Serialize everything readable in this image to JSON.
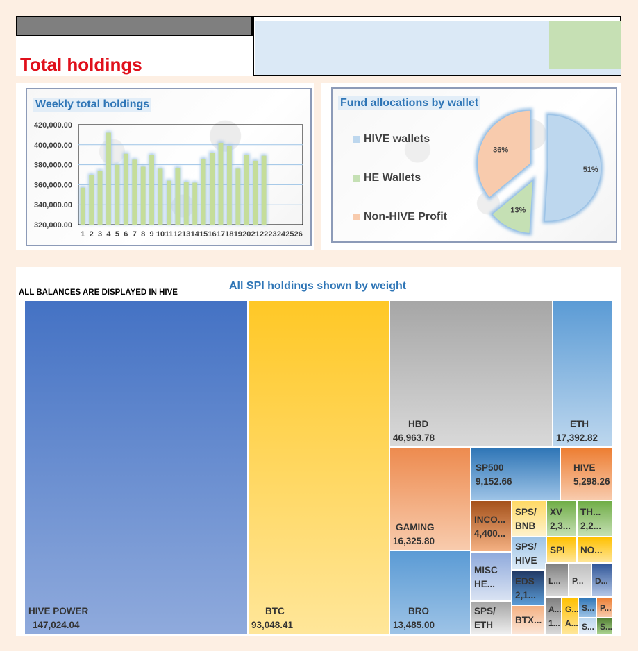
{
  "header": {
    "title": "Total holdings"
  },
  "weekly_chart": {
    "title": "Weekly total holdings"
  },
  "pie_chart": {
    "title": "Fund allocations by wallet"
  },
  "treemap": {
    "title": "All SPI holdings shown by weight",
    "note": "ALL BALANCES ARE DISPLAYED IN HIVE"
  },
  "chart_data": [
    {
      "type": "bar",
      "title": "Weekly total holdings",
      "categories": [
        "1",
        "2",
        "3",
        "4",
        "5",
        "6",
        "7",
        "8",
        "9",
        "10",
        "11",
        "12",
        "13",
        "14",
        "15",
        "16",
        "17",
        "18",
        "19",
        "20",
        "21",
        "22",
        "23",
        "24",
        "25",
        "26"
      ],
      "values": [
        357000,
        370000,
        374000,
        412000,
        380000,
        391000,
        385000,
        378000,
        390000,
        376000,
        364000,
        377000,
        363000,
        362000,
        386000,
        392000,
        402000,
        399000,
        376000,
        390000,
        384000,
        389000,
        null,
        null,
        null,
        null
      ],
      "ylim": [
        320000,
        420000
      ],
      "yticks": [
        "320,000.00",
        "340,000.00",
        "360,000.00",
        "380,000.00",
        "400,000.00",
        "420,000.00"
      ],
      "grid": true,
      "colors": {
        "bar": "#c5dd9a",
        "glow": "#9dc3e6"
      }
    },
    {
      "type": "pie",
      "title": "Fund allocations by wallet",
      "legend_position": "left",
      "slices": [
        {
          "name": "HIVE wallets",
          "value": 51,
          "label": "51%",
          "color": "#bdd7ee"
        },
        {
          "name": "HE Wallets",
          "value": 13,
          "label": "13%",
          "color": "#c5e0b4"
        },
        {
          "name": "Non-HIVE Profit",
          "value": 36,
          "label": "36%",
          "color": "#f8cbad"
        }
      ]
    },
    {
      "type": "treemap",
      "title": "All SPI holdings shown by weight",
      "items": [
        {
          "name": "HIVE POWER",
          "label": "HIVE POWER",
          "value_label": "147,024.04",
          "value": 147024.04,
          "color": [
            "#4472c4",
            "#8faadc"
          ]
        },
        {
          "name": "BTC",
          "label": "BTC",
          "value_label": "93,048.41",
          "value": 93048.41,
          "color": [
            "#ffc826",
            "#ffe699"
          ]
        },
        {
          "name": "HBD",
          "label": "HBD",
          "value_label": "46,963.78",
          "value": 46963.78,
          "color": [
            "#a6a6a6",
            "#d9d9d9"
          ]
        },
        {
          "name": "ETH",
          "label": "ETH",
          "value_label": "17,392.82",
          "value": 17392.82,
          "color": [
            "#5b9bd5",
            "#bdd7ee"
          ]
        },
        {
          "name": "GAMING",
          "label": "GAMING",
          "value_label": "16,325.80",
          "value": 16325.8,
          "color": [
            "#ed8b4f",
            "#f8cbad"
          ]
        },
        {
          "name": "BRO",
          "label": "BRO",
          "value_label": "13,485.00",
          "value": 13485.0,
          "color": [
            "#5b9bd5",
            "#9dc3e6"
          ]
        },
        {
          "name": "SP500",
          "label": "SP500",
          "value_label": "9,152.66",
          "value": 9152.66,
          "color": [
            "#2e75b6",
            "#9dc3e6"
          ]
        },
        {
          "name": "HIVE",
          "label": "HIVE",
          "value_label": "5,298.26",
          "value": 5298.26,
          "color": [
            "#ed7d31",
            "#f8cbad"
          ]
        },
        {
          "name": "INCOME",
          "label": "INCO...",
          "value_label": "4,400...",
          "value": 4400,
          "color": [
            "#a5521b",
            "#f4b183"
          ]
        },
        {
          "name": "SPS/BNB",
          "label": "SPS/",
          "label2": "BNB",
          "color": [
            "#ffd966",
            "#fff2cc"
          ]
        },
        {
          "name": "XV",
          "label": "XV",
          "value_label": "2,3...",
          "color": [
            "#70ad47",
            "#c5e0b4"
          ]
        },
        {
          "name": "TH",
          "label": "TH...",
          "value_label": "2,2...",
          "color": [
            "#70ad47",
            "#c5e0b4"
          ]
        },
        {
          "name": "SPS/HIVE",
          "label": "SPS/",
          "label2": "HIVE",
          "color": [
            "#9dc3e6",
            "#ddebf7"
          ]
        },
        {
          "name": "SPI",
          "label": "SPI",
          "color": [
            "#ffc000",
            "#ffe699"
          ]
        },
        {
          "name": "NO",
          "label": "NO...",
          "color": [
            "#ffc000",
            "#ffe699"
          ]
        },
        {
          "name": "MISC HE",
          "label": "MISC",
          "label2": "HE...",
          "color": [
            "#8faadc",
            "#dae3f3"
          ]
        },
        {
          "name": "EDS",
          "label": "EDS",
          "value_label": "2,1...",
          "color": [
            "#203864",
            "#5b9bd5"
          ]
        },
        {
          "name": "L",
          "label": "L...",
          "color": [
            "#7f7f7f",
            "#d9d9d9"
          ]
        },
        {
          "name": "P1",
          "label": "P...",
          "color": [
            "#bfbfbf",
            "#ededed"
          ]
        },
        {
          "name": "D",
          "label": "D...",
          "color": [
            "#2f5597",
            "#b4c7e7"
          ]
        },
        {
          "name": "SPS/ETH",
          "label": "SPS/",
          "label2": "ETH",
          "color": [
            "#a6a6a6",
            "#ededed"
          ]
        },
        {
          "name": "BTX",
          "label": "BTX...",
          "color": [
            "#f4b183",
            "#fbe5d6"
          ]
        },
        {
          "name": "A1",
          "label": "A...",
          "label2": "1...",
          "color": [
            "#7f7f7f",
            "#d9d9d9"
          ]
        },
        {
          "name": "G",
          "label": "G...",
          "label2": "A...",
          "color": [
            "#ffc000",
            "#ffe699"
          ]
        },
        {
          "name": "S1",
          "label": "S...",
          "color": [
            "#2e75b6",
            "#9dc3e6"
          ]
        },
        {
          "name": "P2",
          "label": "P...",
          "color": [
            "#ed7d31",
            "#f8cbad"
          ]
        },
        {
          "name": "S2",
          "label": "S...",
          "color": [
            "#bdd7ee",
            "#e7eef8"
          ]
        },
        {
          "name": "S3",
          "label": "S...",
          "color": [
            "#548235",
            "#a9d18e"
          ]
        }
      ]
    }
  ]
}
